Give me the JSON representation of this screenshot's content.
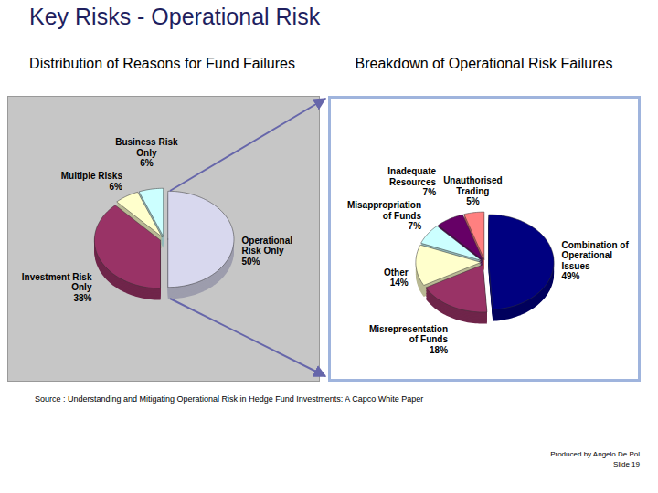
{
  "title": "Key Risks - Operational Risk",
  "chart_data": [
    {
      "type": "pie",
      "title": "Distribution of Reasons for Fund Failures",
      "categories": [
        "Operational Risk Only",
        "Investment Risk Only",
        "Multiple Risks",
        "Business Risk Only"
      ],
      "values": [
        50,
        38,
        6,
        6
      ],
      "value_labels": [
        "50%",
        "38%",
        "6%",
        "6%"
      ],
      "colors": [
        "#d8d8ee",
        "#993366",
        "#ffffcc",
        "#ccffff"
      ],
      "data_labels": true
    },
    {
      "type": "pie",
      "title": "Breakdown of Operational Risk Failures",
      "categories": [
        "Combination of Operational Issues",
        "Misrepresentation of Funds",
        "Other",
        "Misappropriation of Funds",
        "Inadequate Resources",
        "Unauthorised Trading"
      ],
      "values": [
        49,
        18,
        14,
        7,
        7,
        5
      ],
      "value_labels": [
        "49%",
        "18%",
        "14%",
        "7%",
        "7%",
        "5%"
      ],
      "colors": [
        "#000080",
        "#993366",
        "#ffffcc",
        "#ccffff",
        "#660066",
        "#ff8080"
      ],
      "data_labels": true
    }
  ],
  "source": "Source : Understanding and Mitigating Operational Risk in Hedge Fund Investments: A Capco White Paper",
  "footer": [
    "Produced by Angelo De Pol",
    "Slide 19"
  ]
}
